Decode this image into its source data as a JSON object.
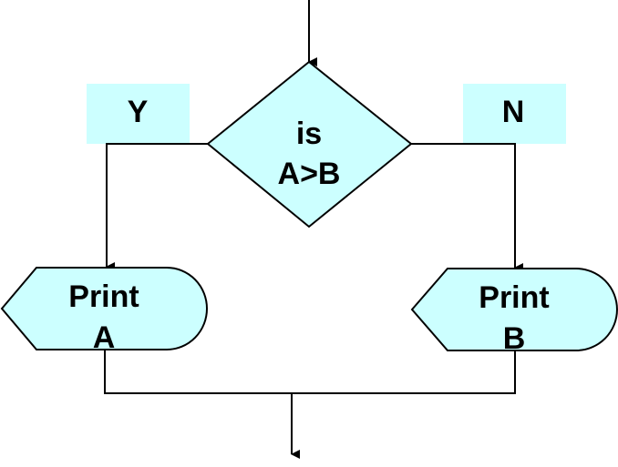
{
  "flowchart": {
    "decision": {
      "line1": "is",
      "line2": "A>B"
    },
    "yes_label": "Y",
    "no_label": "N",
    "output_left": {
      "line1": "Print",
      "line2": "A"
    },
    "output_right": {
      "line1": "Print",
      "line2": "B"
    }
  },
  "colors": {
    "shape_fill": "#ccffff",
    "stroke": "#000000"
  }
}
